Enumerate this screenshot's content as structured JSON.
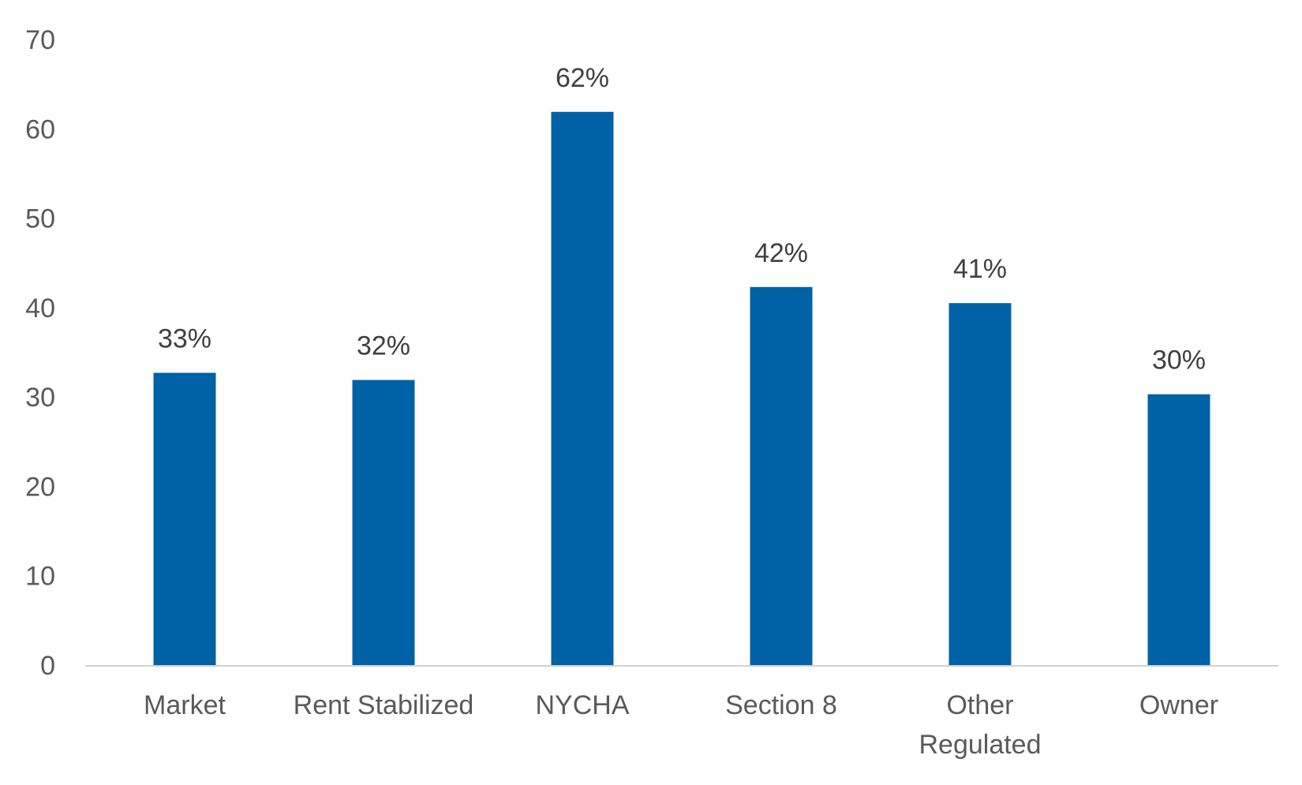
{
  "chart_data": {
    "type": "bar",
    "title": "",
    "xlabel": "",
    "ylabel": "",
    "categories": [
      [
        "Market"
      ],
      [
        "Rent Stabilized"
      ],
      [
        "NYCHA"
      ],
      [
        "Section 8"
      ],
      [
        "Other",
        "Regulated"
      ],
      [
        "Owner"
      ]
    ],
    "values": [
      32.7,
      31.9,
      61.9,
      42.3,
      40.5,
      30.3
    ],
    "data_labels": [
      "33%",
      "32%",
      "62%",
      "42%",
      "41%",
      "30%"
    ],
    "ylim": [
      0,
      70
    ],
    "yticks": [
      "0",
      "10",
      "20",
      "30",
      "40",
      "50",
      "60",
      "70"
    ],
    "grid": false,
    "legend": "none",
    "colors": {
      "bar": "#0062A6",
      "axis_line": "#D0D0D0",
      "tick_text": "#595959",
      "data_label_text": "#404040"
    }
  }
}
